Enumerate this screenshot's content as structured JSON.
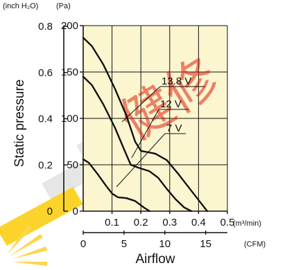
{
  "chart_data": {
    "type": "line",
    "title": "",
    "xlabel": "Airflow",
    "ylabel": "Static pressure",
    "left_units": {
      "inh2o": "(inch H₂O)",
      "pa": "(Pa)"
    },
    "bottom_units": {
      "m3": "(m³/min)",
      "cfm": "(CFM)"
    },
    "x_m3": {
      "range": [
        0,
        0.5
      ],
      "ticks": [
        "0.1",
        "0.2",
        "0.3",
        "0.4",
        "0.5"
      ]
    },
    "x_cfm": {
      "range": [
        0,
        17.66
      ],
      "ticks": [
        "0",
        "5",
        "10",
        "15"
      ],
      "tick_values": [
        0,
        5,
        10,
        15
      ]
    },
    "y_pa": {
      "range": [
        0,
        200
      ],
      "ticks": [
        "0",
        "50",
        "100",
        "150",
        "200"
      ],
      "tick_values": [
        0,
        50,
        100,
        150,
        200
      ]
    },
    "y_inh2o": {
      "range": [
        0,
        0.803
      ],
      "ticks": [
        "0",
        "0.2",
        "0.4",
        "0.6",
        "0.8"
      ],
      "tick_values": [
        0,
        0.2,
        0.4,
        0.6,
        0.8
      ]
    },
    "grid": true,
    "background": "#fbf6cf",
    "series": [
      {
        "name": "13.8 V",
        "x": [
          0,
          0.03,
          0.07,
          0.11,
          0.15,
          0.18,
          0.2,
          0.25,
          0.29,
          0.33,
          0.37,
          0.41,
          0.43
        ],
        "y": [
          187,
          178,
          158,
          132,
          103,
          75,
          65,
          62,
          55,
          40,
          24,
          8,
          0
        ]
      },
      {
        "name": "12 V",
        "x": [
          0,
          0.03,
          0.07,
          0.11,
          0.14,
          0.165,
          0.19,
          0.23,
          0.26,
          0.29,
          0.32,
          0.35,
          0.375
        ],
        "y": [
          145,
          136,
          115,
          90,
          68,
          50,
          47,
          43,
          36,
          24,
          13,
          4,
          0
        ]
      },
      {
        "name": "7 V",
        "x": [
          0,
          0.02,
          0.05,
          0.08,
          0.1,
          0.12,
          0.15,
          0.18,
          0.21,
          0.23
        ],
        "y": [
          56,
          52,
          40,
          27,
          19,
          15,
          14,
          11,
          4,
          0
        ]
      }
    ],
    "watermark": "健修"
  }
}
